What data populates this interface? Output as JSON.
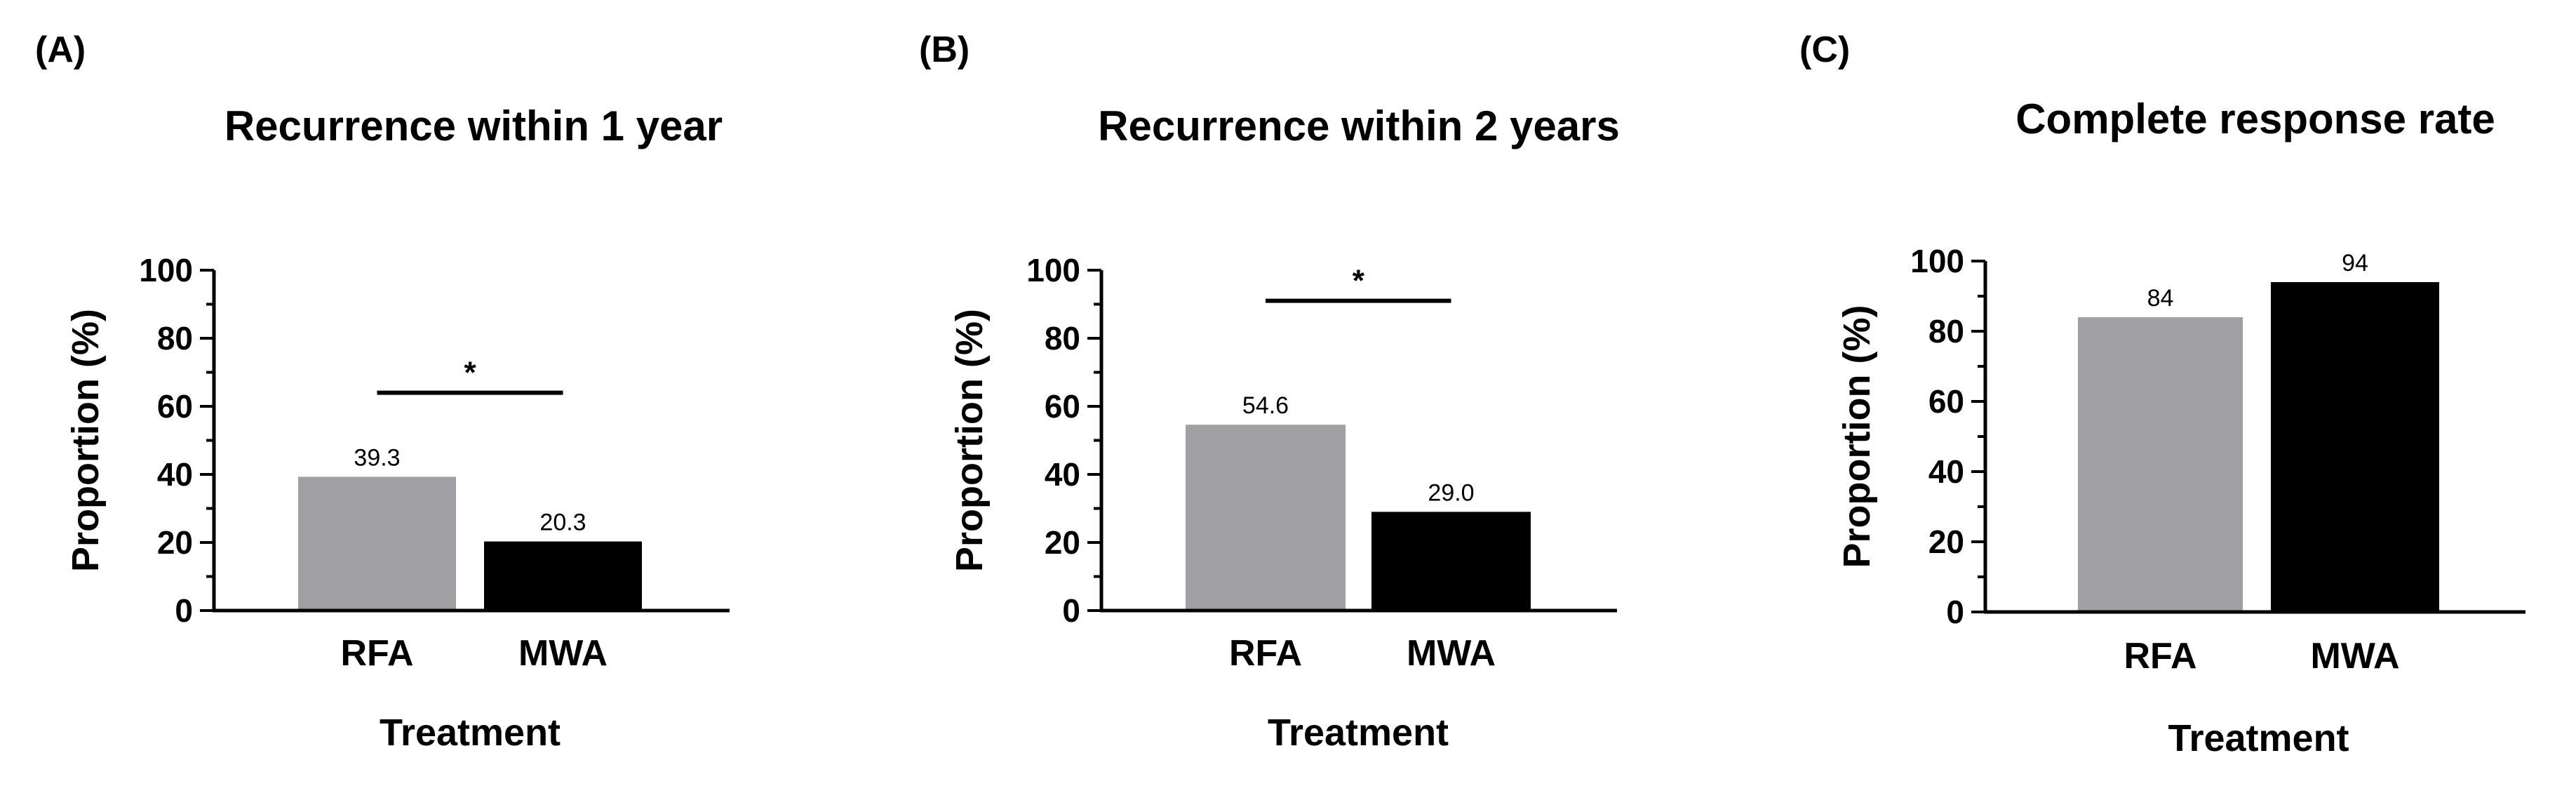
{
  "chart_data": [
    {
      "type": "bar",
      "panel": "(A)",
      "title": "Recurrence within 1 year",
      "xlabel": "Treatment",
      "ylabel": "Proportion (%)",
      "ylim": [
        0,
        100
      ],
      "yticks": [
        "0",
        "20",
        "40",
        "60",
        "80",
        "100"
      ],
      "categories": [
        "RFA",
        "MWA"
      ],
      "values": [
        39.3,
        20.3
      ],
      "value_labels": [
        "39.3",
        "20.3"
      ],
      "colors": [
        "#a0a0a4",
        "#000000"
      ],
      "significance": {
        "label": "*",
        "between": [
          0,
          1
        ],
        "y": 64
      },
      "grid": false,
      "legend": "none"
    },
    {
      "type": "bar",
      "panel": "(B)",
      "title": "Recurrence within 2 years",
      "xlabel": "Treatment",
      "ylabel": "Proportion (%)",
      "ylim": [
        0,
        100
      ],
      "yticks": [
        "0",
        "20",
        "40",
        "60",
        "80",
        "100"
      ],
      "categories": [
        "RFA",
        "MWA"
      ],
      "values": [
        54.6,
        29.0
      ],
      "value_labels": [
        "54.6",
        "29.0"
      ],
      "colors": [
        "#a0a0a4",
        "#000000"
      ],
      "significance": {
        "label": "*",
        "between": [
          0,
          1
        ],
        "y": 91
      },
      "grid": false,
      "legend": "none"
    },
    {
      "type": "bar",
      "panel": "(C)",
      "title": "Complete response rate",
      "xlabel": "Treatment",
      "ylabel": "Proportion (%)",
      "ylim": [
        0,
        100
      ],
      "yticks": [
        "0",
        "20",
        "40",
        "60",
        "80",
        "100"
      ],
      "categories": [
        "RFA",
        "MWA"
      ],
      "values": [
        84,
        94
      ],
      "value_labels": [
        "84",
        "94"
      ],
      "colors": [
        "#a0a0a4",
        "#000000"
      ],
      "significance": null,
      "grid": false,
      "legend": "none"
    }
  ]
}
